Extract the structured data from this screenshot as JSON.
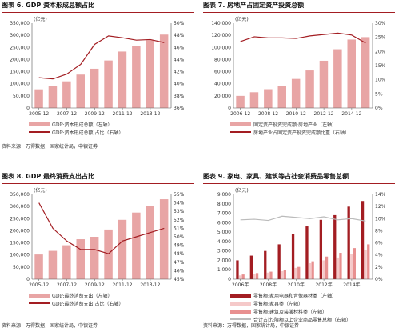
{
  "panels": [
    {
      "title": "图表 6. GDP 资本形成总额占比",
      "source": "资料来源：万得数据，国家统计局，中银证券"
    },
    {
      "title": "图表 7. 房地产占固定资产投资总额",
      "source": ""
    },
    {
      "title": "图表 8. GDP 最终消费支出占比",
      "source": "资料来源：万得数据，国家统计局，中银证券"
    },
    {
      "title": "图表 9. 家电、家具、建筑等占社会消费品零售总额",
      "source": "资料来源：万得数据，国家统计局，中银证券"
    }
  ],
  "chart_data": [
    {
      "type": "bar",
      "unit_label": "(亿元)",
      "categories": [
        "2005-12",
        "2006-12",
        "2007-12",
        "2008-12",
        "2009-12",
        "2010-12",
        "2011-12",
        "2012-12",
        "2013-12",
        "2014-12"
      ],
      "x_tick_labels": [
        "2005-12",
        "2007-12",
        "2009-12",
        "2011-12",
        "2013-12"
      ],
      "x_tick_index": [
        0,
        2,
        4,
        6,
        8
      ],
      "series": [
        {
          "name": "GDP:资本形成总额（左轴）",
          "values": [
            77000,
            91000,
            110000,
            138000,
            162000,
            196000,
            233000,
            256000,
            280000,
            303000
          ],
          "axis": "left",
          "color": "#e8a5a5"
        },
        {
          "name": "GDP:资本形成总额:占比（右轴）",
          "values": [
            41.0,
            40.8,
            41.6,
            43.2,
            46.5,
            47.9,
            47.6,
            47.2,
            47.3,
            46.8
          ],
          "axis": "right",
          "color": "#a31d22"
        }
      ],
      "ylim_left": [
        0,
        350000
      ],
      "yticks_left": [
        "0",
        "50,000",
        "100,000",
        "150,000",
        "200,000",
        "250,000",
        "300,000",
        "350,000"
      ],
      "ylim_right": [
        36,
        50
      ],
      "yticks_right": [
        "36%",
        "38%",
        "40%",
        "42%",
        "44%",
        "46%",
        "48%",
        "50%"
      ]
    },
    {
      "type": "bar",
      "unit_label": "(亿元)",
      "categories": [
        "2006-12",
        "2007-12",
        "2008-12",
        "2009-12",
        "2010-12",
        "2011-12",
        "2012-12",
        "2013-12",
        "2014-12",
        "2015-12"
      ],
      "x_tick_labels": [
        "2006-12",
        "2008-12",
        "2010-12",
        "2012-12",
        "2014-12"
      ],
      "x_tick_index": [
        0,
        2,
        4,
        6,
        8
      ],
      "series": [
        {
          "name": "固定资产投资完成额:房地产业（左轴）",
          "values": [
            20000,
            26000,
            31000,
            36000,
            48000,
            62000,
            78000,
            97000,
            113000,
            117000
          ],
          "axis": "left",
          "color": "#e8a5a5"
        },
        {
          "name": "房地产业占固定资产投资完成额比重（右轴）",
          "values": [
            23.5,
            25.2,
            24.8,
            24.8,
            24.6,
            25.5,
            26.0,
            26.5,
            25.8,
            23.0
          ],
          "axis": "right",
          "color": "#a31d22"
        }
      ],
      "ylim_left": [
        0,
        140000
      ],
      "yticks_left": [
        "0",
        "20,000",
        "40,000",
        "60,000",
        "80,000",
        "100,000",
        "120,000",
        "140,000"
      ],
      "ylim_right": [
        0,
        30
      ],
      "yticks_right": [
        "0%",
        "5%",
        "10%",
        "15%",
        "20%",
        "25%",
        "30%"
      ]
    },
    {
      "type": "bar",
      "unit_label": "(亿元)",
      "categories": [
        "2005-12",
        "2006-12",
        "2007-12",
        "2008-12",
        "2009-12",
        "2010-12",
        "2011-12",
        "2012-12",
        "2013-12",
        "2014-12"
      ],
      "x_tick_labels": [
        "2005-12",
        "2007-12",
        "2009-12",
        "2011-12",
        "2013-12"
      ],
      "x_tick_index": [
        0,
        2,
        4,
        6,
        8
      ],
      "series": [
        {
          "name": "GDP:最终消费支出（左轴）",
          "values": [
            102000,
            117000,
            140000,
            165000,
            175000,
            205000,
            245000,
            275000,
            302000,
            330000
          ],
          "axis": "left",
          "color": "#e8a5a5"
        },
        {
          "name": "GDP:最终消费支出:占比（右轴）",
          "values": [
            54.0,
            51.0,
            49.5,
            48.5,
            48.5,
            48.0,
            49.5,
            50.0,
            50.5,
            51.0
          ],
          "axis": "right",
          "color": "#a31d22"
        }
      ],
      "ylim_left": [
        0,
        350000
      ],
      "yticks_left": [
        "0",
        "50,000",
        "100,000",
        "150,000",
        "200,000",
        "250,000",
        "300,000",
        "350,000"
      ],
      "ylim_right": [
        45,
        55
      ],
      "yticks_right": [
        "45%",
        "46%",
        "47%",
        "48%",
        "49%",
        "50%",
        "51%",
        "52%",
        "53%",
        "54%",
        "55%"
      ]
    },
    {
      "type": "bar",
      "unit_label": "(亿元)",
      "categories": [
        "2006年",
        "2007年",
        "2008年",
        "2009年",
        "2010年",
        "2011年",
        "2012年",
        "2013年",
        "2014年",
        "2015年"
      ],
      "x_tick_labels": [
        "2006年",
        "2008年",
        "2010年",
        "2012年",
        "2014年"
      ],
      "x_tick_index": [
        0,
        2,
        4,
        6,
        8
      ],
      "series": [
        {
          "name": "零售额:家用电器和音像器材类（左轴）",
          "values": [
            2000,
            2500,
            3000,
            3700,
            4800,
            5600,
            6300,
            6800,
            7700,
            8300
          ],
          "axis": "left",
          "color": "#a31d22"
        },
        {
          "name": "零售额:家具类（左轴）",
          "values": [
            400,
            550,
            700,
            850,
            1200,
            1700,
            2000,
            2300,
            2700,
            3100
          ],
          "axis": "left",
          "color": "#f5c9c9"
        },
        {
          "name": "零售额:建筑及装潢材料类（左轴）",
          "values": [
            500,
            650,
            800,
            1000,
            1300,
            1900,
            2400,
            2800,
            3300,
            3700
          ],
          "axis": "left",
          "color": "#e89090"
        },
        {
          "name": "合计占比:限额以上企业商品零售总额（右轴）",
          "values": [
            9.8,
            9.9,
            9.7,
            10.4,
            10.2,
            10.0,
            10.3,
            9.8,
            10.0,
            9.6
          ],
          "axis": "right",
          "color": "#bbbbbb"
        }
      ],
      "ylim_left": [
        0,
        9000
      ],
      "yticks_left": [
        "0",
        "1,000",
        "2,000",
        "3,000",
        "4,000",
        "5,000",
        "6,000",
        "7,000",
        "8,000",
        "9,000"
      ],
      "ylim_right": [
        0,
        14
      ],
      "yticks_right": [
        "0%",
        "2%",
        "4%",
        "6%",
        "8%",
        "10%",
        "12%",
        "14%"
      ]
    }
  ]
}
